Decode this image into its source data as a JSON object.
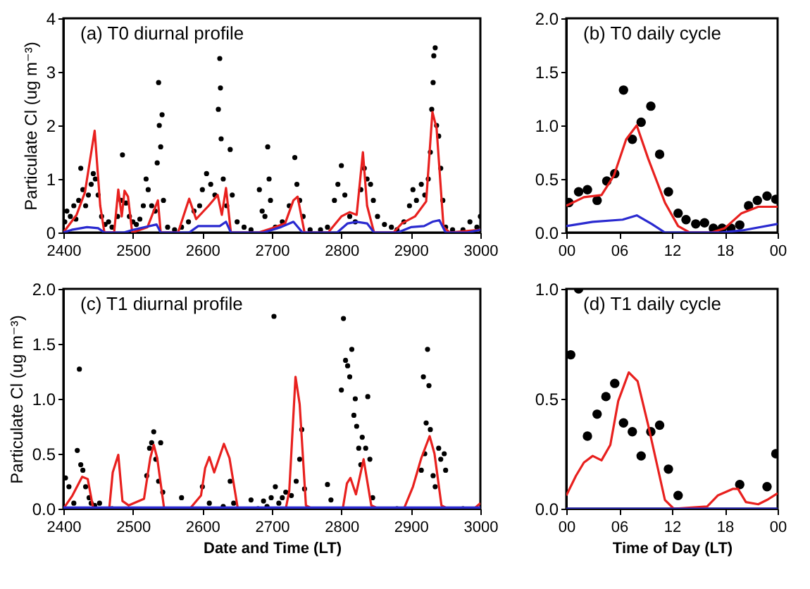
{
  "chart_data": [
    {
      "type": "line",
      "title": "(a) T0 diurnal profile",
      "ylabel": "Particulate Cl (ug m⁻³)",
      "xlim": [
        2400,
        3000
      ],
      "xticks": [
        2400,
        2500,
        2600,
        2700,
        2800,
        2900,
        3000
      ],
      "ylim": [
        0,
        4
      ],
      "yticks": [
        0,
        1,
        2,
        3,
        4
      ],
      "series": [
        {
          "type": "scatter",
          "marker": "circle",
          "color": "#000000",
          "x": [
            2402,
            2405,
            2410,
            2415,
            2418,
            2422,
            2425,
            2428,
            2432,
            2436,
            2440,
            2443,
            2446,
            2450,
            2455,
            2460,
            2465,
            2470,
            2478,
            2483,
            2485,
            2490,
            2495,
            2500,
            2505,
            2510,
            2515,
            2519,
            2522,
            2527,
            2532,
            2535,
            2537,
            2538,
            2540,
            2542,
            2544,
            2550,
            2560,
            2570,
            2580,
            2588,
            2596,
            2600,
            2606,
            2612,
            2618,
            2623,
            2625,
            2626,
            2627,
            2630,
            2635,
            2640,
            2643,
            2650,
            2660,
            2670,
            2682,
            2686,
            2690,
            2694,
            2696,
            2698,
            2705,
            2715,
            2725,
            2733,
            2736,
            2740,
            2745,
            2755,
            2770,
            2780,
            2790,
            2795,
            2800,
            2805,
            2812,
            2820,
            2828,
            2833,
            2837,
            2842,
            2846,
            2852,
            2862,
            2872,
            2880,
            2890,
            2898,
            2903,
            2908,
            2915,
            2920,
            2925,
            2928,
            2930,
            2932,
            2933,
            2935,
            2937,
            2940,
            2943,
            2946,
            2950,
            2960,
            2975,
            2985,
            2995,
            3000
          ],
          "values": [
            0.2,
            0.4,
            0.3,
            0.5,
            0.25,
            0.6,
            1.2,
            0.8,
            0.5,
            0.7,
            0.9,
            1.1,
            1.0,
            0.7,
            0.3,
            0.15,
            0.2,
            0.1,
            0.3,
            0.6,
            1.45,
            0.55,
            0.3,
            0.2,
            0.15,
            0.25,
            0.5,
            1.0,
            0.8,
            0.5,
            0.4,
            1.3,
            2.8,
            2.0,
            1.6,
            2.2,
            0.6,
            0.1,
            0.05,
            0.1,
            0.2,
            0.4,
            0.5,
            0.8,
            1.1,
            0.9,
            0.7,
            2.3,
            3.25,
            2.7,
            1.75,
            1.0,
            0.5,
            1.55,
            0.7,
            0.2,
            0.1,
            0.05,
            0.8,
            0.4,
            0.3,
            1.6,
            1.0,
            0.6,
            0.1,
            0.2,
            0.5,
            1.4,
            0.9,
            0.6,
            0.3,
            0.05,
            0.05,
            0.1,
            0.6,
            0.9,
            1.25,
            0.7,
            0.3,
            0.2,
            0.8,
            1.2,
            1.0,
            0.9,
            0.6,
            0.3,
            0.15,
            0.1,
            0.05,
            0.2,
            0.5,
            0.8,
            0.6,
            0.9,
            0.7,
            1.0,
            1.5,
            2.3,
            2.8,
            3.3,
            3.45,
            2.0,
            1.8,
            1.2,
            0.6,
            0.1,
            0.05,
            0.05,
            0.2,
            0.1,
            0.3
          ]
        },
        {
          "type": "line",
          "color": "#e8201e",
          "x": [
            2400,
            2419,
            2431,
            2445,
            2453,
            2459,
            2473,
            2479,
            2484,
            2488,
            2493,
            2499,
            2521,
            2536,
            2540,
            2565,
            2581,
            2591,
            2609,
            2622,
            2628,
            2634,
            2641,
            2681,
            2700,
            2719,
            2731,
            2737,
            2747,
            2781,
            2800,
            2812,
            2822,
            2831,
            2837,
            2847,
            2875,
            2887,
            2906,
            2922,
            2931,
            2937,
            2947,
            2956,
            3000
          ],
          "values": [
            0,
            0.33,
            0.75,
            1.9,
            0.5,
            0,
            0,
            0.8,
            0.3,
            0.78,
            0.67,
            0,
            0.1,
            0.6,
            0,
            0,
            0.63,
            0.25,
            0.5,
            0.7,
            0.33,
            0.83,
            0,
            0,
            0.08,
            0.17,
            0.6,
            0.67,
            0,
            0,
            0.3,
            0.38,
            0.33,
            1.5,
            0.5,
            0,
            0,
            0.17,
            0.3,
            0.58,
            2.25,
            1.95,
            0.1,
            0,
            0.05
          ]
        },
        {
          "type": "line",
          "color": "#2a2ad0",
          "x": [
            2400,
            2412,
            2434,
            2450,
            2459,
            2487,
            2500,
            2534,
            2540,
            2581,
            2594,
            2625,
            2634,
            2641,
            2688,
            2713,
            2731,
            2744,
            2794,
            2809,
            2822,
            2837,
            2847,
            2881,
            2900,
            2919,
            2931,
            2941,
            2950,
            2981,
            3000
          ],
          "values": [
            0,
            0.05,
            0.1,
            0.08,
            0,
            0,
            0.05,
            0.15,
            0,
            0,
            0.12,
            0.12,
            0.2,
            0,
            0,
            0.1,
            0.2,
            0,
            0,
            0.17,
            0.2,
            0.17,
            0,
            0,
            0.1,
            0.12,
            0.2,
            0.23,
            0,
            0,
            0.05
          ]
        }
      ]
    },
    {
      "type": "line",
      "title": "(b) T0 daily cycle",
      "xlim": [
        0,
        24
      ],
      "xticks": [
        {
          "value": 0,
          "label": "00"
        },
        {
          "value": 6,
          "label": "06"
        },
        {
          "value": 12,
          "label": "12"
        },
        {
          "value": 18,
          "label": "18"
        },
        {
          "value": 24,
          "label": "00"
        }
      ],
      "ylim": [
        0,
        2
      ],
      "yticks": [
        {
          "value": 0,
          "label": "0.0"
        },
        {
          "value": 0.5,
          "label": "0.5"
        },
        {
          "value": 1,
          "label": "1.0"
        },
        {
          "value": 1.5,
          "label": "1.5"
        },
        {
          "value": 2,
          "label": "2.0"
        }
      ],
      "series": [
        {
          "type": "scatter",
          "marker": "circle",
          "color": "#000000",
          "x": [
            0.3,
            1.4,
            2.4,
            3.5,
            4.6,
            5.5,
            6.5,
            7.5,
            8.5,
            9.6,
            10.6,
            11.6,
            12.7,
            13.6,
            14.7,
            15.7,
            16.7,
            17.7,
            18.7,
            19.7,
            20.7,
            21.7,
            22.8,
            23.8
          ],
          "values": [
            0.28,
            0.38,
            0.4,
            0.3,
            0.48,
            0.55,
            1.33,
            0.87,
            1.03,
            1.18,
            0.73,
            0.38,
            0.18,
            0.12,
            0.08,
            0.09,
            0.04,
            0.04,
            0.04,
            0.07,
            0.25,
            0.3,
            0.34,
            0.31
          ]
        },
        {
          "type": "line",
          "color": "#e8201e",
          "x": [
            0,
            2,
            4,
            5.4,
            6.8,
            8,
            9.3,
            11.2,
            12.7,
            14,
            16.5,
            18,
            19.9,
            21.8,
            24
          ],
          "values": [
            0.25,
            0.33,
            0.35,
            0.53,
            0.87,
            1.0,
            0.69,
            0.28,
            0.06,
            0,
            0,
            0.04,
            0.18,
            0.24,
            0.24
          ]
        },
        {
          "type": "line",
          "color": "#2a2ad0",
          "x": [
            0,
            3,
            6.4,
            8,
            9.7,
            11.2,
            14,
            17.5,
            20,
            24
          ],
          "values": [
            0.06,
            0.1,
            0.12,
            0.16,
            0.08,
            0,
            0,
            0,
            0.02,
            0.08
          ]
        }
      ]
    },
    {
      "type": "line",
      "title": "(c) T1 diurnal profile",
      "xlabel": "Date and Time (LT)",
      "ylabel": "Particulate Cl (ug m⁻³)",
      "xlim": [
        2400,
        3000
      ],
      "xticks": [
        2400,
        2500,
        2600,
        2700,
        2800,
        2900,
        3000
      ],
      "ylim": [
        0,
        2
      ],
      "yticks": [
        {
          "value": 0,
          "label": "0.0"
        },
        {
          "value": 0.5,
          "label": "0.5"
        },
        {
          "value": 1,
          "label": "1.0"
        },
        {
          "value": 1.5,
          "label": "1.5"
        },
        {
          "value": 2,
          "label": "2.0"
        }
      ],
      "series": [
        {
          "type": "scatter",
          "marker": "circle",
          "color": "#000000",
          "x": [
            2403,
            2408,
            2415,
            2420,
            2423,
            2425,
            2428,
            2432,
            2437,
            2440,
            2445,
            2452,
            2470,
            2520,
            2524,
            2527,
            2530,
            2533,
            2537,
            2540,
            2543,
            2570,
            2600,
            2610,
            2630,
            2640,
            2645,
            2670,
            2680,
            2688,
            2693,
            2699,
            2703,
            2705,
            2710,
            2715,
            2720,
            2728,
            2735,
            2740,
            2743,
            2747,
            2780,
            2785,
            2800,
            2803,
            2806,
            2809,
            2812,
            2815,
            2818,
            2820,
            2822,
            2825,
            2828,
            2830,
            2835,
            2838,
            2841,
            2845,
            2880,
            2915,
            2918,
            2920,
            2922,
            2924,
            2926,
            2928,
            2932,
            2935,
            2940,
            2943,
            2948,
            2950,
            2975
          ],
          "values": [
            0.28,
            0.2,
            0.05,
            0.53,
            1.27,
            0.4,
            0.35,
            0.2,
            0.1,
            0.05,
            0.03,
            0.05,
            0,
            0.3,
            0.55,
            0.6,
            0.7,
            0.45,
            0.25,
            0.6,
            0.15,
            0.1,
            0.2,
            0.05,
            0.02,
            0.25,
            0.05,
            0.08,
            0,
            0.07,
            0.02,
            0.1,
            1.75,
            0.2,
            0.05,
            0.1,
            0.15,
            0.12,
            0.25,
            0.45,
            0.72,
            0.18,
            0.22,
            0.08,
            1.08,
            1.73,
            1.35,
            1.3,
            1.2,
            1.45,
            0.85,
            1.0,
            0.75,
            0.55,
            0.4,
            0.65,
            0.55,
            1.02,
            0.45,
            0.1,
            0,
            0.35,
            1.2,
            0.5,
            0.78,
            1.45,
            1.12,
            0.72,
            0.3,
            0.2,
            0.55,
            0.45,
            0.5,
            0.35,
            0
          ]
        },
        {
          "type": "line",
          "color": "#e8201e",
          "x": [
            2400,
            2413,
            2427,
            2435,
            2443,
            2466,
            2471,
            2479,
            2485,
            2494,
            2516,
            2525,
            2530,
            2535,
            2545,
            2582,
            2598,
            2604,
            2610,
            2617,
            2631,
            2639,
            2651,
            2720,
            2725,
            2734,
            2740,
            2749,
            2758,
            2802,
            2808,
            2813,
            2821,
            2832,
            2843,
            2853,
            2890,
            2903,
            2915,
            2927,
            2934,
            2944,
            2953,
            2991,
            3000
          ],
          "values": [
            0,
            0.12,
            0.29,
            0.27,
            0,
            0,
            0.33,
            0.49,
            0.07,
            0.03,
            0.09,
            0.46,
            0.58,
            0.46,
            0,
            0,
            0.12,
            0.37,
            0.47,
            0.33,
            0.59,
            0.46,
            0,
            0,
            0.16,
            1.2,
            0.95,
            0.03,
            0,
            0,
            0.23,
            0.28,
            0.13,
            0.45,
            0.03,
            0,
            0,
            0.2,
            0.46,
            0.66,
            0.5,
            0.03,
            0,
            0,
            0.05
          ]
        },
        {
          "type": "line",
          "color": "#2a2ad0",
          "x": [
            2400,
            2500,
            2600,
            2700,
            2800,
            2900,
            3000
          ],
          "values": [
            0.01,
            0.01,
            0.01,
            0.01,
            0.01,
            0.01,
            0.01
          ]
        }
      ]
    },
    {
      "type": "line",
      "title": "(d) T1 daily cycle",
      "xlabel": "Time of Day (LT)",
      "xlim": [
        0,
        24
      ],
      "xticks": [
        {
          "value": 0,
          "label": "00"
        },
        {
          "value": 6,
          "label": "06"
        },
        {
          "value": 12,
          "label": "12"
        },
        {
          "value": 18,
          "label": "18"
        },
        {
          "value": 24,
          "label": "00"
        }
      ],
      "ylim": [
        0,
        1
      ],
      "yticks": [
        {
          "value": 0,
          "label": "0.0"
        },
        {
          "value": 0.5,
          "label": "0.5"
        },
        {
          "value": 1,
          "label": "1.0"
        }
      ],
      "series": [
        {
          "type": "scatter",
          "marker": "circle",
          "color": "#000000",
          "x": [
            0.5,
            1.4,
            2.4,
            3.5,
            4.5,
            5.5,
            6.5,
            7.5,
            8.5,
            9.6,
            10.6,
            11.6,
            12.7,
            19.7,
            22.8,
            23.8
          ],
          "values": [
            0.7,
            1.0,
            0.33,
            0.43,
            0.51,
            0.57,
            0.39,
            0.35,
            0.24,
            0.35,
            0.38,
            0.18,
            0.06,
            0.11,
            0.1,
            0.25
          ]
        },
        {
          "type": "line",
          "color": "#e8201e",
          "x": [
            0,
            1.1,
            2,
            3,
            4,
            5,
            5.9,
            7.1,
            8.1,
            9.3,
            11.2,
            12.2,
            16,
            17.2,
            18.9,
            19.5,
            20.4,
            21.8,
            22.8,
            24
          ],
          "values": [
            0.06,
            0.15,
            0.21,
            0.24,
            0.22,
            0.29,
            0.49,
            0.62,
            0.58,
            0.38,
            0.04,
            0,
            0.01,
            0.06,
            0.09,
            0.09,
            0.03,
            0.02,
            0.04,
            0.07
          ]
        },
        {
          "type": "line",
          "color": "#2a2ad0",
          "x": [
            0,
            6,
            12,
            18,
            24
          ],
          "values": [
            0,
            0,
            0,
            0,
            0
          ]
        }
      ]
    }
  ]
}
